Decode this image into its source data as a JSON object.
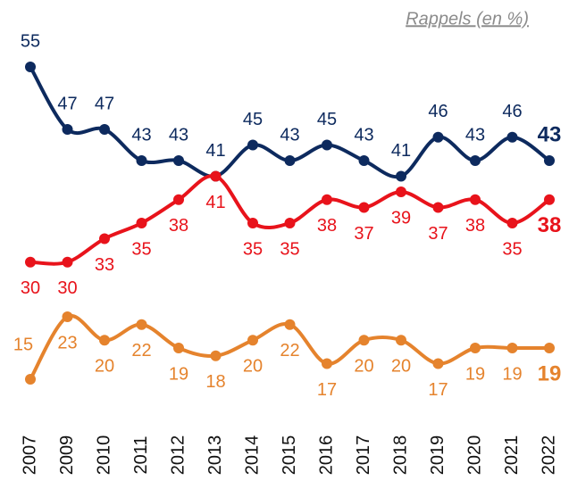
{
  "chart_data": {
    "type": "line",
    "title": "Rappels (en %)",
    "categories": [
      "2007",
      "2009",
      "2010",
      "2011",
      "2012",
      "2013",
      "2014",
      "2015",
      "2016",
      "2017",
      "2018",
      "2019",
      "2020",
      "2021",
      "2022"
    ],
    "series": [
      {
        "name": null,
        "color": "#0d2a5e",
        "values": [
          55,
          47,
          47,
          43,
          43,
          41,
          45,
          43,
          45,
          43,
          41,
          46,
          43,
          46,
          43
        ]
      },
      {
        "name": null,
        "color": "#e8131b",
        "values": [
          30,
          30,
          33,
          35,
          38,
          41,
          35,
          35,
          38,
          37,
          39,
          37,
          38,
          35,
          38
        ]
      },
      {
        "name": null,
        "color": "#e5832d",
        "values": [
          15,
          23,
          20,
          22,
          19,
          18,
          20,
          22,
          17,
          20,
          20,
          17,
          19,
          19,
          19
        ]
      }
    ],
    "ylim": [
      10,
      60
    ]
  }
}
